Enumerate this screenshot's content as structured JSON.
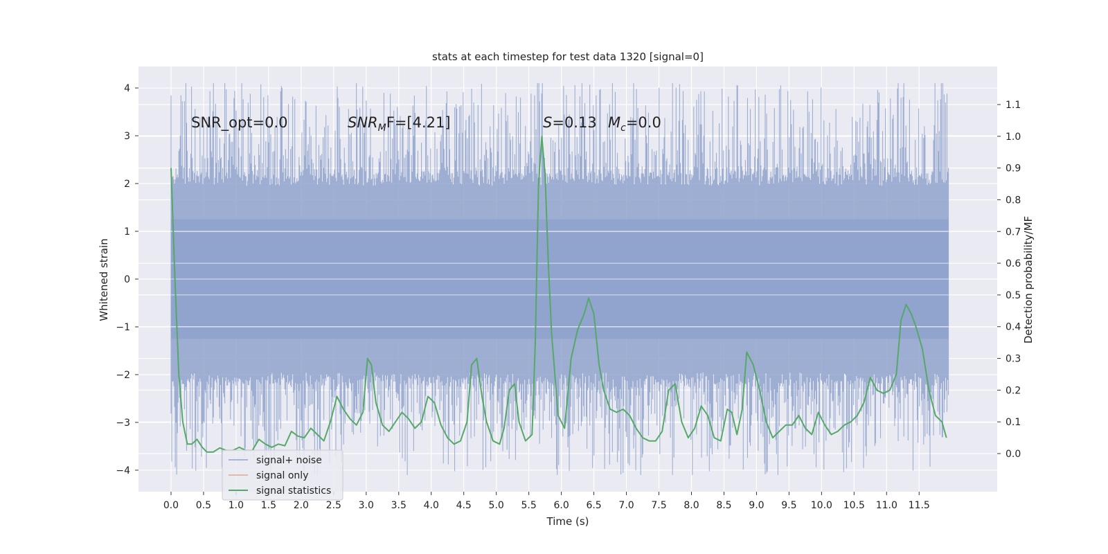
{
  "chart_data": {
    "type": "line",
    "title": "stats at each timestep for test data 1320 [signal=0]",
    "xlabel": "Time (s)",
    "ylabel": "Whitened strain",
    "y2label": "Detection probability/MF",
    "xlim": [
      -0.5,
      12.7
    ],
    "ylim": [
      -4.45,
      4.45
    ],
    "y2lim": [
      -0.12,
      1.22
    ],
    "x_ticks": [
      "0.0",
      "0.5",
      "1.0",
      "1.5",
      "2.0",
      "2.5",
      "3.0",
      "3.5",
      "4.0",
      "4.5",
      "5.0",
      "5.5",
      "6.0",
      "6.5",
      "7.0",
      "7.5",
      "8.0",
      "8.5",
      "9.0",
      "9.5",
      "10.0",
      "10.5",
      "11.0",
      "11.5"
    ],
    "y_ticks": [
      "4",
      "3",
      "2",
      "1",
      "0",
      "−1",
      "−2",
      "−3",
      "−4"
    ],
    "y2_ticks": [
      "1.1",
      "1.0",
      "0.9",
      "0.8",
      "0.7",
      "0.6",
      "0.5",
      "0.4",
      "0.3",
      "0.2",
      "0.1",
      "0.0"
    ],
    "grid": true,
    "legend_position": "lower-left",
    "annotations": {
      "snr_opt": "SNR_opt=0.0",
      "snr_mf_main": "SNR",
      "snr_mf_sub": "M",
      "snr_mf_tail": "F=[4.21]",
      "s_label": "S",
      "s_value": "=0.13",
      "mc_label": "M",
      "mc_sub": "c",
      "mc_value": "=0.0"
    },
    "series": [
      {
        "name": "signal+ noise",
        "color": "#8fa3cc",
        "note": "dense whitened-strain noise trace spanning roughly ±2 with spikes to ±4"
      },
      {
        "name": "signal only",
        "color": "#e8a48a",
        "values": []
      },
      {
        "name": "signal statistics",
        "color": "#55a868",
        "x": [
          0.0,
          0.06,
          0.12,
          0.18,
          0.25,
          0.32,
          0.4,
          0.48,
          0.55,
          0.65,
          0.75,
          0.85,
          0.95,
          1.05,
          1.15,
          1.25,
          1.35,
          1.45,
          1.55,
          1.65,
          1.75,
          1.85,
          1.95,
          2.05,
          2.15,
          2.25,
          2.35,
          2.45,
          2.55,
          2.65,
          2.75,
          2.85,
          2.95,
          3.02,
          3.08,
          3.15,
          3.25,
          3.35,
          3.45,
          3.55,
          3.65,
          3.75,
          3.85,
          3.95,
          4.05,
          4.15,
          4.25,
          4.35,
          4.45,
          4.55,
          4.62,
          4.7,
          4.78,
          4.85,
          4.95,
          5.05,
          5.12,
          5.2,
          5.28,
          5.35,
          5.45,
          5.55,
          5.6,
          5.65,
          5.7,
          5.75,
          5.8,
          5.85,
          5.95,
          6.05,
          6.15,
          6.25,
          6.35,
          6.42,
          6.5,
          6.58,
          6.65,
          6.75,
          6.85,
          6.95,
          7.05,
          7.15,
          7.25,
          7.35,
          7.45,
          7.55,
          7.65,
          7.75,
          7.85,
          7.95,
          8.05,
          8.15,
          8.25,
          8.35,
          8.45,
          8.55,
          8.62,
          8.7,
          8.78,
          8.85,
          8.95,
          9.05,
          9.15,
          9.25,
          9.35,
          9.45,
          9.55,
          9.65,
          9.75,
          9.85,
          9.95,
          10.05,
          10.15,
          10.25,
          10.35,
          10.45,
          10.55,
          10.65,
          10.75,
          10.85,
          10.95,
          11.05,
          11.15,
          11.22,
          11.3,
          11.38,
          11.45,
          11.55,
          11.65,
          11.75,
          11.85,
          11.92
        ],
        "values": [
          0.9,
          0.55,
          0.25,
          0.1,
          0.03,
          0.03,
          0.045,
          0.02,
          0.005,
          0.005,
          0.018,
          0.01,
          0.01,
          0.02,
          0.01,
          0.01,
          0.045,
          0.03,
          0.02,
          0.03,
          0.025,
          0.07,
          0.055,
          0.05,
          0.08,
          0.06,
          0.04,
          0.1,
          0.18,
          0.14,
          0.11,
          0.09,
          0.13,
          0.3,
          0.28,
          0.16,
          0.09,
          0.07,
          0.1,
          0.13,
          0.11,
          0.08,
          0.1,
          0.18,
          0.16,
          0.09,
          0.05,
          0.03,
          0.04,
          0.1,
          0.28,
          0.3,
          0.18,
          0.1,
          0.04,
          0.03,
          0.08,
          0.2,
          0.22,
          0.1,
          0.04,
          0.06,
          0.35,
          0.85,
          1.0,
          0.88,
          0.6,
          0.38,
          0.12,
          0.08,
          0.3,
          0.39,
          0.44,
          0.49,
          0.44,
          0.28,
          0.2,
          0.14,
          0.13,
          0.14,
          0.12,
          0.08,
          0.05,
          0.04,
          0.04,
          0.07,
          0.2,
          0.22,
          0.1,
          0.05,
          0.08,
          0.15,
          0.12,
          0.05,
          0.04,
          0.14,
          0.13,
          0.06,
          0.14,
          0.32,
          0.28,
          0.2,
          0.1,
          0.05,
          0.07,
          0.09,
          0.09,
          0.12,
          0.08,
          0.06,
          0.13,
          0.09,
          0.06,
          0.07,
          0.09,
          0.1,
          0.12,
          0.16,
          0.24,
          0.2,
          0.19,
          0.2,
          0.25,
          0.42,
          0.47,
          0.44,
          0.4,
          0.33,
          0.2,
          0.12,
          0.1,
          0.05
        ]
      }
    ]
  }
}
